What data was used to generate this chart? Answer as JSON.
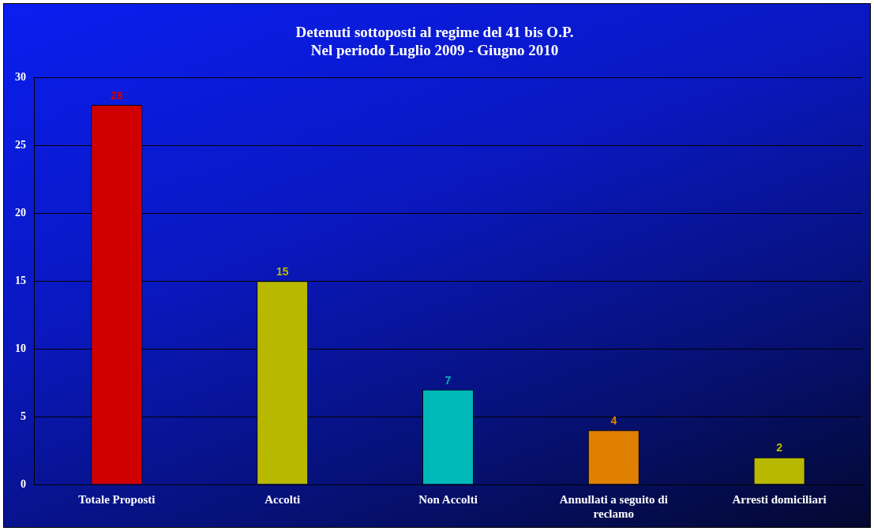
{
  "chart_data": {
    "type": "bar",
    "title": "Detenuti sottoposti al regime del 41 bis O.P.\nNel periodo Luglio 2009 - Giugno 2010",
    "categories": [
      "Totale Proposti",
      "Accolti",
      "Non Accolti",
      "Annullati a seguito di reclamo",
      "Arresti domiciliari"
    ],
    "values": [
      28,
      15,
      7,
      4,
      2
    ],
    "colors": [
      "#d00000",
      "#b8b800",
      "#00b8b8",
      "#e08000",
      "#b8b800"
    ],
    "ylim": [
      0,
      30
    ],
    "yticks": [
      0,
      5,
      10,
      15,
      20,
      25,
      30
    ],
    "grid": "y",
    "data_labels": true
  }
}
